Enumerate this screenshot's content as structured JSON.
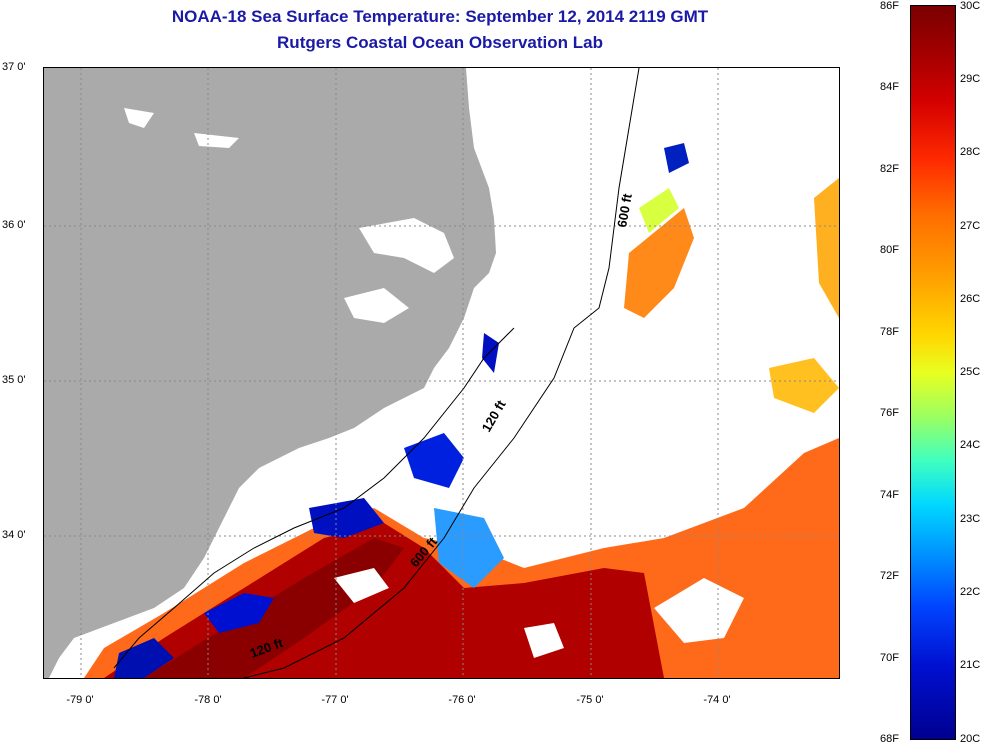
{
  "header": {
    "title": "NOAA-18 Sea Surface Temperature:  September 12, 2014 2119 GMT",
    "subtitle": "Rutgers Coastal Ocean Observation Lab"
  },
  "map": {
    "lat_labels": [
      "37 0'",
      "36 0'",
      "35 0'",
      "34 0'"
    ],
    "lon_labels": [
      "-79 0'",
      "-78 0'",
      "-77 0'",
      "-76 0'",
      "-75 0'",
      "-74 0'"
    ],
    "contour_labels": [
      "600 ft",
      "120 ft",
      "600 ft",
      "120 ft"
    ],
    "colors": {
      "land": "#aaaaaa",
      "cloud": "#ffffff",
      "warm": "#b00000",
      "cool": "#000090"
    }
  },
  "colorbar": {
    "fahrenheit": [
      "86F",
      "84F",
      "82F",
      "80F",
      "78F",
      "76F",
      "74F",
      "72F",
      "70F",
      "68F"
    ],
    "celsius": [
      "30C",
      "29C",
      "28C",
      "27C",
      "26C",
      "25C",
      "24C",
      "23C",
      "22C",
      "21C",
      "20C"
    ]
  }
}
